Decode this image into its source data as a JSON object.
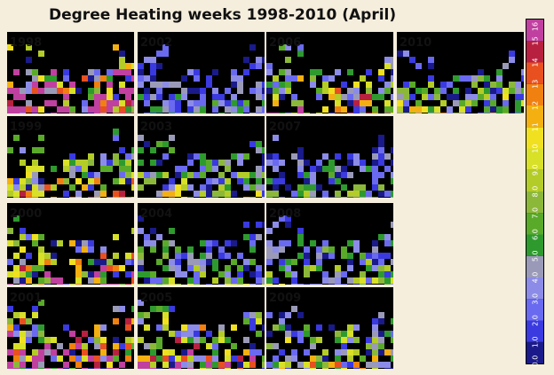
{
  "title": "Degree Heating weeks 1998-2010 (April)",
  "panels": [
    {
      "label": "1998"
    },
    {
      "label": "1999"
    },
    {
      "label": "2000"
    },
    {
      "label": "2001"
    },
    {
      "label": "2002"
    },
    {
      "label": "2003"
    },
    {
      "label": "2004"
    },
    {
      "label": "2005"
    },
    {
      "label": "2006"
    },
    {
      "label": "2007"
    },
    {
      "label": "2008"
    },
    {
      "label": "2009"
    },
    {
      "label": "2010"
    }
  ],
  "colorbar": {
    "labels": [
      "0.0",
      "1.0",
      "2.0",
      "3.0",
      "4.0",
      "5.0",
      "6.0",
      "7.0",
      "8.0",
      "9.0",
      "10",
      "11",
      "12",
      "13",
      "14",
      "15",
      "16"
    ],
    "colors": [
      "#1a1a8a",
      "#3a3ae0",
      "#6a6af0",
      "#8c8ce8",
      "#9a9ab8",
      "#2e9a2e",
      "#5aaa2a",
      "#8cb83a",
      "#b4cc28",
      "#d8e028",
      "#f0e020",
      "#f4b010",
      "#f08010",
      "#e85020",
      "#b82040",
      "#c040a0"
    ]
  }
}
